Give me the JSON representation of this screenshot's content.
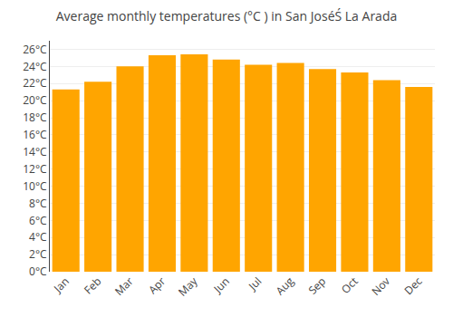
{
  "chart_data": {
    "type": "bar",
    "title": "Average monthly temperatures (°C ) in San JoséŚ La Arada",
    "categories": [
      "Jan",
      "Feb",
      "Mar",
      "Apr",
      "May",
      "Jun",
      "Jul",
      "Aug",
      "Sep",
      "Oct",
      "Nov",
      "Dec"
    ],
    "values": [
      21.3,
      22.2,
      24.0,
      25.3,
      25.4,
      24.8,
      24.2,
      24.4,
      23.7,
      23.3,
      22.4,
      21.6
    ],
    "color": "#FFA500",
    "ylim": [
      0,
      27
    ],
    "yticks": [
      {
        "value": 0,
        "label": "0°C"
      },
      {
        "value": 2,
        "label": "2°C"
      },
      {
        "value": 4,
        "label": "4°C"
      },
      {
        "value": 6,
        "label": "6°C"
      },
      {
        "value": 8,
        "label": "8°C"
      },
      {
        "value": 10,
        "label": "10°C"
      },
      {
        "value": 12,
        "label": "12°C"
      },
      {
        "value": 14,
        "label": "14°C"
      },
      {
        "value": 16,
        "label": "16°C"
      },
      {
        "value": 18,
        "label": "18°C"
      },
      {
        "value": 20,
        "label": "20°C"
      },
      {
        "value": 22,
        "label": "22°C"
      },
      {
        "value": 24,
        "label": "24°C"
      },
      {
        "value": 26,
        "label": "26°C"
      }
    ],
    "grid": true
  }
}
